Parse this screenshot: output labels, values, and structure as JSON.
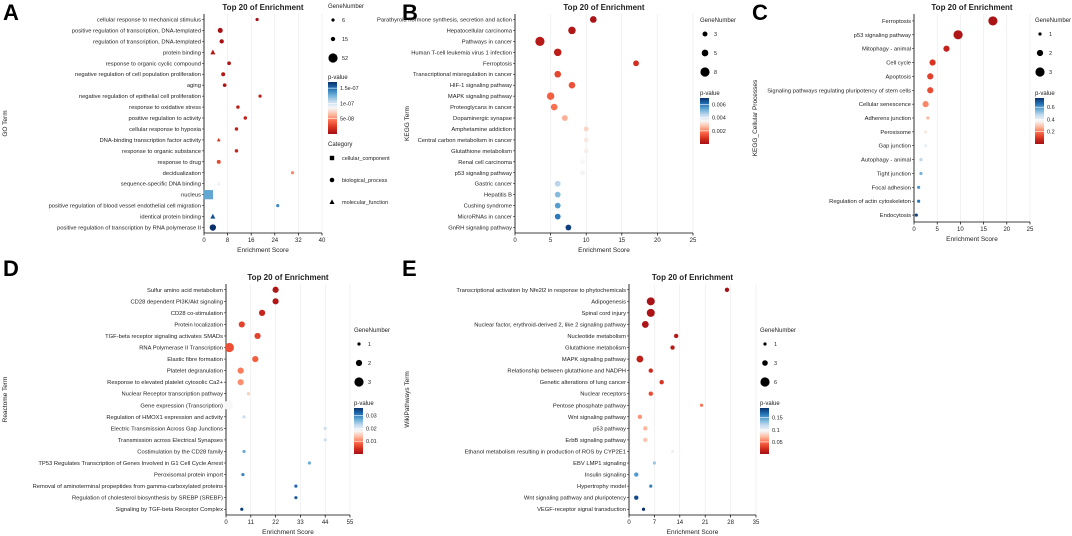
{
  "colors": {
    "scale": [
      "#a50f15",
      "#d7301f",
      "#fb6a4a",
      "#fcbba1",
      "#f7f7f7",
      "#c6dbef",
      "#6baed6",
      "#2171b5",
      "#08306b"
    ],
    "axis": "#000000",
    "grid": "#e5e5e5"
  },
  "chart_data": [
    {
      "type": "scatter",
      "panel": "A",
      "title": "Top 20 of  Enrichment",
      "xlabel": "Enrichment Score",
      "ylabel": "GO Term",
      "xlim": [
        0,
        40
      ],
      "xticks": [
        0,
        8,
        16,
        24,
        32,
        40
      ],
      "size_legend": {
        "title": "GeneNumber",
        "values": [
          6,
          15,
          52
        ],
        "range": [
          6,
          52
        ]
      },
      "color_legend": {
        "title": "p-value",
        "ticks": [
          1.5e-07,
          1e-07,
          5e-08
        ],
        "tick_labels": [
          "1.5e-07",
          "1e-07",
          "5e-08"
        ],
        "range": [
          0,
          1.7e-07
        ]
      },
      "shape_legend": {
        "title": "Category",
        "items": [
          {
            "label": "cellular_component",
            "shape": "square"
          },
          {
            "label": "biological_process",
            "shape": "circle"
          },
          {
            "label": "molecular_function",
            "shape": "triangle"
          }
        ]
      },
      "points": [
        {
          "term": "cellular response to mechanical stimulus",
          "score": 18,
          "genes": 6,
          "p": 1e-09,
          "shape": "circle"
        },
        {
          "term": "positive regulation of transcription, DNA-templated",
          "score": 5.5,
          "genes": 20,
          "p": 1e-09,
          "shape": "circle"
        },
        {
          "term": "regulation of transcription, DNA-templated",
          "score": 6,
          "genes": 15,
          "p": 1e-09,
          "shape": "circle"
        },
        {
          "term": "protein binding",
          "score": 3,
          "genes": 20,
          "p": 5e-09,
          "shape": "triangle"
        },
        {
          "term": "response to organic cyclic compound",
          "score": 8.5,
          "genes": 10,
          "p": 5e-09,
          "shape": "circle"
        },
        {
          "term": "negative regulation of cell population proliferation",
          "score": 6.5,
          "genes": 12,
          "p": 5e-09,
          "shape": "circle"
        },
        {
          "term": "aging",
          "score": 7,
          "genes": 10,
          "p": 5e-09,
          "shape": "circle"
        },
        {
          "term": "negative regulation of epithelial cell proliferation",
          "score": 19,
          "genes": 6,
          "p": 1e-08,
          "shape": "circle"
        },
        {
          "term": "response to oxidative stress",
          "score": 11.5,
          "genes": 8,
          "p": 1e-08,
          "shape": "circle"
        },
        {
          "term": "positive regulation to activity",
          "score": 14,
          "genes": 8,
          "p": 1e-08,
          "shape": "circle"
        },
        {
          "term": "cellular response to hypoxia",
          "score": 11,
          "genes": 8,
          "p": 1.2e-08,
          "shape": "circle"
        },
        {
          "term": "DNA-binding transcription factor activity",
          "score": 5,
          "genes": 10,
          "p": 2e-08,
          "shape": "triangle"
        },
        {
          "term": "response to organic substance",
          "score": 11,
          "genes": 8,
          "p": 1.5e-08,
          "shape": "circle"
        },
        {
          "term": "response to drug",
          "score": 5,
          "genes": 12,
          "p": 3e-08,
          "shape": "circle"
        },
        {
          "term": "decidualization",
          "score": 30,
          "genes": 6,
          "p": 5e-08,
          "shape": "circle"
        },
        {
          "term": "sequence-specific DNA binding",
          "score": 5,
          "genes": 10,
          "p": 9e-08,
          "shape": "triangle"
        },
        {
          "term": "nucleus",
          "score": 1.5,
          "genes": 52,
          "p": 1.3e-07,
          "shape": "square"
        },
        {
          "term": "positive regulation of blood vessel endothelial cell migration",
          "score": 25,
          "genes": 6,
          "p": 1.4e-07,
          "shape": "circle"
        },
        {
          "term": "identical protein binding",
          "score": 3,
          "genes": 20,
          "p": 1.6e-07,
          "shape": "triangle"
        },
        {
          "term": "positive regulation of transcription by RNA polymerase II",
          "score": 3,
          "genes": 30,
          "p": 1.7e-07,
          "shape": "circle"
        }
      ]
    },
    {
      "type": "scatter",
      "panel": "B",
      "title": "Top 20 of  Enrichment",
      "xlabel": "Enrichment Score",
      "ylabel": "KEGG Term",
      "xlim": [
        0,
        25
      ],
      "xticks": [
        0,
        5,
        10,
        15,
        20,
        25
      ],
      "size_legend": {
        "title": "GeneNumber",
        "values": [
          3,
          5,
          8
        ],
        "range": [
          1,
          8
        ]
      },
      "color_legend": {
        "title": "p-value",
        "ticks": [
          0.006,
          0.004,
          0.002
        ],
        "tick_labels": [
          "0.006",
          "0.004",
          "0.002"
        ],
        "range": [
          0,
          0.007
        ]
      },
      "points": [
        {
          "term": "Parathyroid hormone synthesis, secretion and action",
          "score": 11,
          "genes": 5,
          "p": 0.0001
        },
        {
          "term": "Hepatocellular carcinoma",
          "score": 8,
          "genes": 6,
          "p": 0.0002
        },
        {
          "term": "Pathways in cancer",
          "score": 3.5,
          "genes": 8,
          "p": 0.0003
        },
        {
          "term": "Human T-cell leukemia virus 1 infection",
          "score": 6,
          "genes": 6,
          "p": 0.0004
        },
        {
          "term": "Ferroptosis",
          "score": 17,
          "genes": 4,
          "p": 0.0008
        },
        {
          "term": "Transcriptional misregulation in cancer",
          "score": 6,
          "genes": 5,
          "p": 0.0012
        },
        {
          "term": "HIF-1 signaling pathway",
          "score": 8,
          "genes": 5,
          "p": 0.0014
        },
        {
          "term": "MAPK signaling pathway",
          "score": 5,
          "genes": 6,
          "p": 0.0016
        },
        {
          "term": "Proteoglycans in cancer",
          "score": 5.5,
          "genes": 5,
          "p": 0.0018
        },
        {
          "term": "Dopaminergic synapse",
          "score": 7,
          "genes": 4,
          "p": 0.0025
        },
        {
          "term": "Amphetamine addiction",
          "score": 10,
          "genes": 3,
          "p": 0.003
        },
        {
          "term": "Central carbon metabolism in cancer",
          "score": 10,
          "genes": 3,
          "p": 0.0033
        },
        {
          "term": "Glutathione metabolism",
          "score": 10,
          "genes": 3,
          "p": 0.0034
        },
        {
          "term": "Renal cell carcinoma",
          "score": 9.5,
          "genes": 3,
          "p": 0.0035
        },
        {
          "term": "p53 signaling pathway",
          "score": 9.5,
          "genes": 3,
          "p": 0.0036
        },
        {
          "term": "Gastric cancer",
          "score": 6,
          "genes": 4,
          "p": 0.0045
        },
        {
          "term": "Hepatitis B",
          "score": 6,
          "genes": 4,
          "p": 0.005
        },
        {
          "term": "Cushing syndrome",
          "score": 6,
          "genes": 4,
          "p": 0.0055
        },
        {
          "term": "MicroRNAs in cancer",
          "score": 6,
          "genes": 4,
          "p": 0.006
        },
        {
          "term": "GnRH signaling pathway",
          "score": 7.5,
          "genes": 4,
          "p": 0.0068
        }
      ]
    },
    {
      "type": "scatter",
      "panel": "C",
      "title": "Top 20 of  Enrichment",
      "xlabel": "Enrichment Score",
      "ylabel": "KEGG_Cellular Processes",
      "xlim": [
        0,
        25
      ],
      "xticks": [
        0,
        5,
        10,
        15,
        20,
        25
      ],
      "size_legend": {
        "title": "GeneNumber",
        "values": [
          1,
          2,
          3
        ],
        "range": [
          1,
          3
        ]
      },
      "color_legend": {
        "title": "p-value",
        "ticks": [
          0.6,
          0.4,
          0.2
        ],
        "tick_labels": [
          "0.6",
          "0.4",
          "0.2"
        ],
        "range": [
          0,
          0.75
        ]
      },
      "points": [
        {
          "term": "Ferroptosis",
          "score": 17,
          "genes": 3,
          "p": 0.01
        },
        {
          "term": "p53 signaling pathway",
          "score": 9.5,
          "genes": 3,
          "p": 0.02
        },
        {
          "term": "Mitophagy - animal",
          "score": 7,
          "genes": 2,
          "p": 0.05
        },
        {
          "term": "Cell cycle",
          "score": 4,
          "genes": 2,
          "p": 0.1
        },
        {
          "term": "Apoptosis",
          "score": 3.5,
          "genes": 2,
          "p": 0.12
        },
        {
          "term": "Signaling pathways regulating pluripotency of stem cells",
          "score": 3.5,
          "genes": 2,
          "p": 0.14
        },
        {
          "term": "Cellular senescence",
          "score": 2.5,
          "genes": 2,
          "p": 0.22
        },
        {
          "term": "Adherens junction",
          "score": 3,
          "genes": 1,
          "p": 0.28
        },
        {
          "term": "Peroxisome",
          "score": 2.5,
          "genes": 1,
          "p": 0.35
        },
        {
          "term": "Gap junction",
          "score": 2.5,
          "genes": 1,
          "p": 0.4
        },
        {
          "term": "Autophagy - animal",
          "score": 1.5,
          "genes": 1,
          "p": 0.48
        },
        {
          "term": "Tight junction",
          "score": 1.5,
          "genes": 1,
          "p": 0.55
        },
        {
          "term": "Focal adhesion",
          "score": 1,
          "genes": 1,
          "p": 0.6
        },
        {
          "term": "Regulation of actin cytoskeleton",
          "score": 1,
          "genes": 1,
          "p": 0.65
        },
        {
          "term": "Endocytosis",
          "score": 0.5,
          "genes": 1,
          "p": 0.72
        }
      ]
    },
    {
      "type": "scatter",
      "panel": "D",
      "title": "Top 20 of  Enrichment",
      "xlabel": "Enrichment Score",
      "ylabel": "Reactome Term",
      "xlim": [
        0,
        55
      ],
      "xticks": [
        0,
        11,
        22,
        33,
        44,
        55
      ],
      "size_legend": {
        "title": "GeneNumber",
        "values": [
          1,
          2,
          3
        ],
        "range": [
          1,
          3
        ]
      },
      "color_legend": {
        "title": "p-value",
        "ticks": [
          0.03,
          0.02,
          0.01
        ],
        "tick_labels": [
          "0.03",
          "0.02",
          "0.01"
        ],
        "range": [
          0,
          0.036
        ]
      },
      "points": [
        {
          "term": "Sulfur amino acid metabolism",
          "score": 22,
          "genes": 2,
          "p": 0.001
        },
        {
          "term": "CD28 dependent PI3K/Akt signaling",
          "score": 22,
          "genes": 2,
          "p": 0.001
        },
        {
          "term": "CD28 co-stimulation",
          "score": 16,
          "genes": 2,
          "p": 0.003
        },
        {
          "term": "Protein localization",
          "score": 7,
          "genes": 2,
          "p": 0.006
        },
        {
          "term": "TGF-beta receptor signaling activates SMADs",
          "score": 14,
          "genes": 2,
          "p": 0.006
        },
        {
          "term": "RNA Polymerase II Transcription",
          "score": 1.5,
          "genes": 3,
          "p": 0.007
        },
        {
          "term": "Elastic fibre formation",
          "score": 13,
          "genes": 2,
          "p": 0.008
        },
        {
          "term": "Platelet degranulation",
          "score": 6.5,
          "genes": 2,
          "p": 0.01
        },
        {
          "term": "Response to elevated platelet cytosolic Ca2+",
          "score": 6.5,
          "genes": 2,
          "p": 0.011
        },
        {
          "term": "Nuclear Receptor transcription pathway",
          "score": 10,
          "genes": 1,
          "p": 0.015
        },
        {
          "term": "Gene expression (Transcription)",
          "score": 1,
          "genes": 3,
          "p": 0.018
        },
        {
          "term": "Regulation of HMOX1 expression and activity",
          "score": 8,
          "genes": 1,
          "p": 0.022
        },
        {
          "term": "Electric Transmission Across Gap Junctions",
          "score": 44,
          "genes": 1,
          "p": 0.022
        },
        {
          "term": "Transmission across Electrical Synapses",
          "score": 44,
          "genes": 1,
          "p": 0.022
        },
        {
          "term": "Costimulation by the CD28 family",
          "score": 8,
          "genes": 1,
          "p": 0.027
        },
        {
          "term": "TP53 Regulates Transcription of Genes Involved in G1 Cell Cycle Arrest",
          "score": 37,
          "genes": 1,
          "p": 0.027
        },
        {
          "term": "Peroxisomal protein import",
          "score": 7.5,
          "genes": 1,
          "p": 0.03
        },
        {
          "term": "Removal of aminoterminal propeptides from gamma-carboxylated proteins",
          "score": 31,
          "genes": 1,
          "p": 0.032
        },
        {
          "term": "Regulation of cholesterol biosynthesis by SREBP (SREBF)",
          "score": 31,
          "genes": 1,
          "p": 0.033
        },
        {
          "term": "Signaling by TGF-beta Receptor Complex",
          "score": 7,
          "genes": 1,
          "p": 0.035
        }
      ]
    },
    {
      "type": "scatter",
      "panel": "E",
      "title": "Top 20 of  Enrichment",
      "xlabel": "Enrichment Score",
      "ylabel": "WikiPathways Term",
      "xlim": [
        0,
        35
      ],
      "xticks": [
        0,
        7,
        14,
        21,
        28,
        35
      ],
      "size_legend": {
        "title": "GeneNumber",
        "values": [
          1,
          3,
          6
        ],
        "range": [
          1,
          6
        ]
      },
      "color_legend": {
        "title": "p-value",
        "ticks": [
          0.15,
          0.1,
          0.05
        ],
        "tick_labels": [
          "0.15",
          "0.1",
          "0.05"
        ],
        "range": [
          0,
          0.19
        ]
      },
      "points": [
        {
          "term": "Transcriptional activation by Nfe2l2 in response to phytochemicals",
          "score": 27,
          "genes": 2,
          "p": 0.001
        },
        {
          "term": "Adipogenesis",
          "score": 6,
          "genes": 5,
          "p": 0.002
        },
        {
          "term": "Spinal cord injury",
          "score": 6,
          "genes": 5,
          "p": 0.003
        },
        {
          "term": "Nuclear factor, erythroid-derived 2, like 2 signaling pathway",
          "score": 4.5,
          "genes": 4,
          "p": 0.004
        },
        {
          "term": "Nucleotide metabolism",
          "score": 13,
          "genes": 2,
          "p": 0.008
        },
        {
          "term": "Glutathione metabolism",
          "score": 12,
          "genes": 2,
          "p": 0.01
        },
        {
          "term": "MAPK signaling pathway",
          "score": 3,
          "genes": 4,
          "p": 0.012
        },
        {
          "term": "Relationship between glutathione and NADPH",
          "score": 6,
          "genes": 2,
          "p": 0.02
        },
        {
          "term": "Genetic alterations of lung cancer",
          "score": 9,
          "genes": 2,
          "p": 0.025
        },
        {
          "term": "Nuclear receptors",
          "score": 6,
          "genes": 2,
          "p": 0.035
        },
        {
          "term": "Pentose phosphate pathway",
          "score": 20,
          "genes": 1,
          "p": 0.05
        },
        {
          "term": "Wnt signaling pathway",
          "score": 3,
          "genes": 2,
          "p": 0.06
        },
        {
          "term": "p53 pathway",
          "score": 4.5,
          "genes": 2,
          "p": 0.07
        },
        {
          "term": "ErbB signaling pathway",
          "score": 4.5,
          "genes": 2,
          "p": 0.075
        },
        {
          "term": "Ethanol metabolism resulting in production of ROS by CYP2E1",
          "score": 12,
          "genes": 1,
          "p": 0.1
        },
        {
          "term": "EBV LMP1 signaling",
          "score": 7,
          "genes": 1,
          "p": 0.13
        },
        {
          "term": "Insulin signaling",
          "score": 2,
          "genes": 2,
          "p": 0.15
        },
        {
          "term": "Hypertrophy model",
          "score": 6,
          "genes": 1,
          "p": 0.16
        },
        {
          "term": "Wnt signaling pathway and pluripotency",
          "score": 2,
          "genes": 2,
          "p": 0.18
        },
        {
          "term": "VEGF-receptor signal transduction",
          "score": 4,
          "genes": 1,
          "p": 0.19
        }
      ]
    }
  ]
}
